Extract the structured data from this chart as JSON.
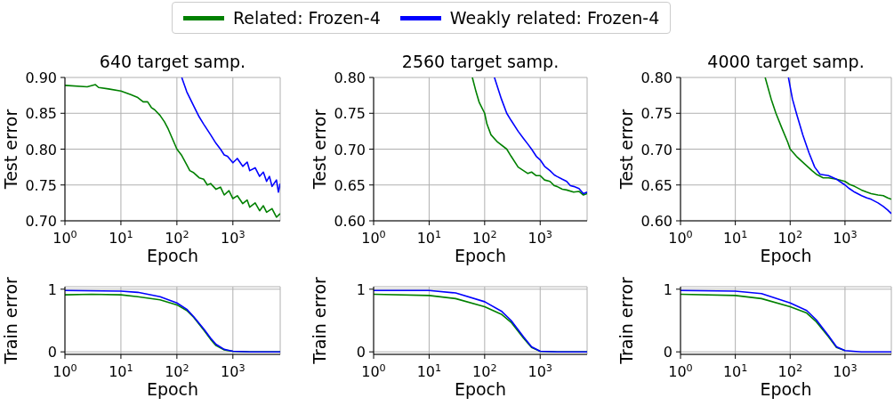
{
  "chart_data": [
    {
      "type": "line",
      "title": "640 target samp.",
      "xlabel": "Epoch",
      "ylabel": "Test error",
      "log": "x",
      "xlim": [
        1,
        7000
      ],
      "xticks": [
        {
          "value": 1,
          "label": "10$^{0}$"
        },
        {
          "value": 10,
          "label": "10$^{1}$"
        },
        {
          "value": 100,
          "label": "10$^{2}$"
        },
        {
          "value": 1000,
          "label": "10$^{3}$"
        }
      ],
      "ylim": [
        0.7,
        0.9
      ],
      "yticks": [
        {
          "value": 0.7,
          "label": "0.70"
        },
        0.75,
        {
          "value": 0.8,
          "label": "0.80"
        },
        0.85,
        {
          "value": 0.9,
          "label": "0.90"
        }
      ],
      "grid": true,
      "legend": "top",
      "series": [
        {
          "name": "Related: Frozen-4",
          "color": "#008000",
          "x": [
            1,
            2.5,
            3.5,
            4,
            6,
            10,
            15,
            20,
            25,
            30,
            35,
            40,
            50,
            60,
            70,
            100,
            120,
            150,
            170,
            200,
            250,
            300,
            350,
            400,
            500,
            600,
            700,
            850,
            1000,
            1200,
            1500,
            1800,
            2000,
            2500,
            3000,
            3500,
            4000,
            5000,
            6000,
            7000
          ],
          "values": [
            0.889,
            0.887,
            0.89,
            0.886,
            0.884,
            0.881,
            0.876,
            0.872,
            0.866,
            0.866,
            0.858,
            0.855,
            0.847,
            0.838,
            0.828,
            0.8,
            0.792,
            0.778,
            0.77,
            0.767,
            0.76,
            0.758,
            0.75,
            0.752,
            0.744,
            0.747,
            0.736,
            0.742,
            0.731,
            0.735,
            0.724,
            0.729,
            0.719,
            0.725,
            0.714,
            0.721,
            0.712,
            0.717,
            0.705,
            0.71
          ]
        },
        {
          "name": "Weakly related: Frozen-4",
          "color": "#0000ff",
          "x": [
            122,
            150,
            200,
            250,
            300,
            400,
            500,
            600,
            700,
            800,
            1000,
            1200,
            1500,
            1800,
            2000,
            2500,
            3000,
            3500,
            4000,
            4500,
            5000,
            6000,
            6500,
            7000
          ],
          "values": [
            0.9,
            0.88,
            0.86,
            0.845,
            0.835,
            0.82,
            0.808,
            0.8,
            0.792,
            0.79,
            0.781,
            0.787,
            0.776,
            0.782,
            0.77,
            0.774,
            0.762,
            0.768,
            0.755,
            0.762,
            0.748,
            0.757,
            0.74,
            0.752
          ]
        }
      ]
    },
    {
      "type": "line",
      "title": "2560 target samp.",
      "xlabel": "Epoch",
      "ylabel": "Test error",
      "log": "x",
      "xlim": [
        1,
        7000
      ],
      "xticks": [
        {
          "value": 1,
          "label": "10$^{0}$"
        },
        {
          "value": 10,
          "label": "10$^{1}$"
        },
        {
          "value": 100,
          "label": "10$^{2}$"
        },
        {
          "value": 1000,
          "label": "10$^{3}$"
        }
      ],
      "ylim": [
        0.6,
        0.8
      ],
      "yticks": [
        {
          "value": 0.6,
          "label": "0.60"
        },
        0.65,
        {
          "value": 0.7,
          "label": "0.70"
        },
        0.75,
        {
          "value": 0.8,
          "label": "0.80"
        }
      ],
      "grid": true,
      "series": [
        {
          "color": "#008000",
          "x": [
            60,
            70,
            80,
            100,
            110,
            130,
            170,
            250,
            300,
            400,
            500,
            600,
            700,
            850,
            1000,
            1200,
            1500,
            1800,
            2000,
            2500,
            3000,
            4000,
            5000,
            6000,
            7000
          ],
          "values": [
            0.8,
            0.78,
            0.765,
            0.75,
            0.735,
            0.72,
            0.71,
            0.7,
            0.69,
            0.675,
            0.67,
            0.666,
            0.668,
            0.663,
            0.663,
            0.657,
            0.655,
            0.649,
            0.648,
            0.644,
            0.643,
            0.64,
            0.641,
            0.636,
            0.638
          ]
        },
        {
          "color": "#0000ff",
          "x": [
            150,
            200,
            250,
            300,
            400,
            500,
            600,
            700,
            850,
            1000,
            1200,
            1500,
            1800,
            2000,
            2500,
            3000,
            3500,
            4000,
            5000,
            6000,
            7000
          ],
          "values": [
            0.8,
            0.77,
            0.75,
            0.74,
            0.725,
            0.715,
            0.707,
            0.7,
            0.69,
            0.685,
            0.676,
            0.67,
            0.664,
            0.662,
            0.658,
            0.655,
            0.649,
            0.648,
            0.645,
            0.638,
            0.64
          ]
        }
      ]
    },
    {
      "type": "line",
      "title": "4000 target samp.",
      "xlabel": "Epoch",
      "ylabel": "Test error",
      "log": "x",
      "xlim": [
        1,
        7000
      ],
      "xticks": [
        {
          "value": 1,
          "label": "10$^{0}$"
        },
        {
          "value": 10,
          "label": "10$^{1}$"
        },
        {
          "value": 100,
          "label": "10$^{2}$"
        },
        {
          "value": 1000,
          "label": "10$^{3}$"
        }
      ],
      "ylim": [
        0.6,
        0.8
      ],
      "yticks": [
        {
          "value": 0.6,
          "label": "0.60"
        },
        0.65,
        {
          "value": 0.7,
          "label": "0.70"
        },
        0.75,
        {
          "value": 0.8,
          "label": "0.80"
        }
      ],
      "grid": true,
      "series": [
        {
          "color": "#008000",
          "x": [
            35,
            45,
            55,
            70,
            90,
            100,
            130,
            180,
            250,
            300,
            400,
            500,
            700,
            1000,
            1200,
            1500,
            2000,
            2500,
            3000,
            4000,
            5000,
            6000,
            7000
          ],
          "values": [
            0.8,
            0.77,
            0.75,
            0.73,
            0.71,
            0.7,
            0.69,
            0.68,
            0.67,
            0.665,
            0.66,
            0.66,
            0.658,
            0.655,
            0.651,
            0.648,
            0.643,
            0.64,
            0.638,
            0.636,
            0.635,
            0.632,
            0.63
          ]
        },
        {
          "color": "#0000ff",
          "x": [
            93,
            110,
            130,
            170,
            220,
            280,
            350,
            500,
            700,
            1000,
            1200,
            1500,
            2000,
            2500,
            3000,
            4000,
            5000,
            6000,
            7000
          ],
          "values": [
            0.8,
            0.77,
            0.75,
            0.72,
            0.695,
            0.675,
            0.665,
            0.663,
            0.658,
            0.65,
            0.645,
            0.64,
            0.635,
            0.632,
            0.63,
            0.625,
            0.62,
            0.615,
            0.61
          ]
        }
      ]
    },
    {
      "type": "line",
      "xlabel": "Epoch",
      "ylabel": "Train error",
      "log": "x",
      "xlim": [
        1,
        7000
      ],
      "xticks": [
        {
          "value": 1,
          "label": "10$^{0}$"
        },
        {
          "value": 10,
          "label": "10$^{1}$"
        },
        {
          "value": 100,
          "label": "10$^{2}$"
        },
        {
          "value": 1000,
          "label": "10$^{3}$"
        }
      ],
      "ylim": [
        -0.04,
        1.04
      ],
      "yticks": [
        0,
        1
      ],
      "grid": true,
      "series": [
        {
          "color": "#008000",
          "x": [
            1,
            3,
            10,
            20,
            50,
            100,
            150,
            200,
            300,
            400,
            500,
            700,
            1000,
            2000,
            7000
          ],
          "values": [
            0.91,
            0.92,
            0.91,
            0.88,
            0.83,
            0.75,
            0.66,
            0.55,
            0.35,
            0.2,
            0.1,
            0.03,
            0.01,
            0,
            0
          ]
        },
        {
          "color": "#0000ff",
          "x": [
            1,
            10,
            20,
            50,
            100,
            150,
            200,
            300,
            400,
            500,
            700,
            1000,
            2000,
            7000
          ],
          "values": [
            0.98,
            0.97,
            0.95,
            0.88,
            0.78,
            0.68,
            0.56,
            0.37,
            0.22,
            0.12,
            0.04,
            0.01,
            0,
            0
          ]
        }
      ]
    },
    {
      "type": "line",
      "xlabel": "Epoch",
      "ylabel": "Train error",
      "log": "x",
      "xlim": [
        1,
        7000
      ],
      "xticks": [
        {
          "value": 1,
          "label": "10$^{0}$"
        },
        {
          "value": 10,
          "label": "10$^{1}$"
        },
        {
          "value": 100,
          "label": "10$^{2}$"
        },
        {
          "value": 1000,
          "label": "10$^{3}$"
        }
      ],
      "ylim": [
        -0.04,
        1.04
      ],
      "yticks": [
        0,
        1
      ],
      "grid": true,
      "series": [
        {
          "color": "#008000",
          "x": [
            1,
            10,
            30,
            100,
            200,
            300,
            500,
            700,
            1000,
            2000,
            7000
          ],
          "values": [
            0.92,
            0.9,
            0.85,
            0.72,
            0.6,
            0.47,
            0.22,
            0.07,
            0.01,
            0,
            0
          ]
        },
        {
          "color": "#0000ff",
          "x": [
            1,
            10,
            30,
            100,
            200,
            300,
            500,
            700,
            1000,
            2000,
            7000
          ],
          "values": [
            0.98,
            0.98,
            0.94,
            0.8,
            0.65,
            0.5,
            0.24,
            0.08,
            0.01,
            0,
            0
          ]
        }
      ]
    },
    {
      "type": "line",
      "xlabel": "Epoch",
      "ylabel": "Train error",
      "log": "x",
      "xlim": [
        1,
        7000
      ],
      "xticks": [
        {
          "value": 1,
          "label": "10$^{0}$"
        },
        {
          "value": 10,
          "label": "10$^{1}$"
        },
        {
          "value": 100,
          "label": "10$^{2}$"
        },
        {
          "value": 1000,
          "label": "10$^{3}$"
        }
      ],
      "ylim": [
        -0.04,
        1.04
      ],
      "yticks": [
        0,
        1
      ],
      "grid": true,
      "series": [
        {
          "color": "#008000",
          "x": [
            1,
            10,
            30,
            100,
            200,
            300,
            500,
            700,
            1000
          ],
          "values": [
            0.92,
            0.9,
            0.85,
            0.72,
            0.62,
            0.48,
            0.24,
            0.07,
            0.02
          ]
        },
        {
          "color": "#0000ff",
          "x": [
            1,
            10,
            30,
            100,
            200,
            300,
            500,
            700,
            1000,
            2000,
            7000
          ],
          "values": [
            0.98,
            0.97,
            0.93,
            0.78,
            0.66,
            0.51,
            0.26,
            0.08,
            0.02,
            0,
            0
          ]
        }
      ]
    }
  ]
}
